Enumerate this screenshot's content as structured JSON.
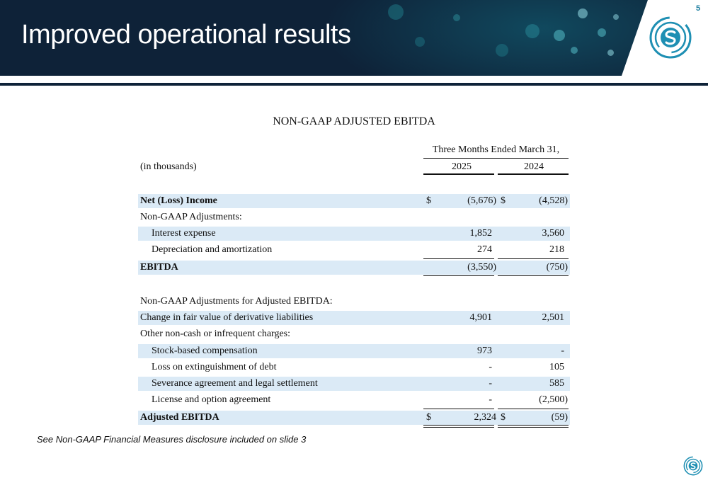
{
  "slide": {
    "title": "Improved operational results",
    "page_number": "5",
    "footnote": "See Non-GAAP Financial Measures disclosure included on slide 3",
    "colors": {
      "header_bg": "#0e2238",
      "row_shade": "#dbeaf6",
      "logo_teal": "#1e8fb3"
    },
    "logo_icon": "company-s-logo-icon"
  },
  "table": {
    "title": "NON-GAAP ADJUSTED EBITDA",
    "period_header": "Three Months Ended March 31,",
    "units": "(in thousands)",
    "years": [
      "2025",
      "2024"
    ],
    "rows": [
      {
        "label": "Net (Loss) Income",
        "v2025": "(5,676)",
        "v2024": "(4,528)",
        "dollar2025": "$",
        "dollar2024": "$"
      },
      {
        "label": "Non-GAAP Adjustments:",
        "v2025": "",
        "v2024": ""
      },
      {
        "label": "Interest expense",
        "v2025": "1,852",
        "v2024": "3,560"
      },
      {
        "label": "Depreciation and amortization",
        "v2025": "274",
        "v2024": "218"
      },
      {
        "label": "EBITDA",
        "v2025": "(3,550)",
        "v2024": "(750)"
      },
      {
        "label": "Non-GAAP Adjustments for Adjusted EBITDA:",
        "v2025": "",
        "v2024": ""
      },
      {
        "label": "Change in fair value of derivative liabilities",
        "v2025": "4,901",
        "v2024": "2,501"
      },
      {
        "label": "Other non-cash or infrequent charges:",
        "v2025": "",
        "v2024": ""
      },
      {
        "label": "Stock-based compensation",
        "v2025": "973",
        "v2024": "-"
      },
      {
        "label": "Loss on extinguishment of debt",
        "v2025": "-",
        "v2024": "105"
      },
      {
        "label": "Severance agreement and legal settlement",
        "v2025": "-",
        "v2024": "585"
      },
      {
        "label": "License and option agreement",
        "v2025": "-",
        "v2024": "(2,500)"
      },
      {
        "label": "Adjusted EBITDA",
        "v2025": "2,324",
        "v2024": "(59)",
        "dollar2025": "$",
        "dollar2024": "$"
      }
    ]
  }
}
